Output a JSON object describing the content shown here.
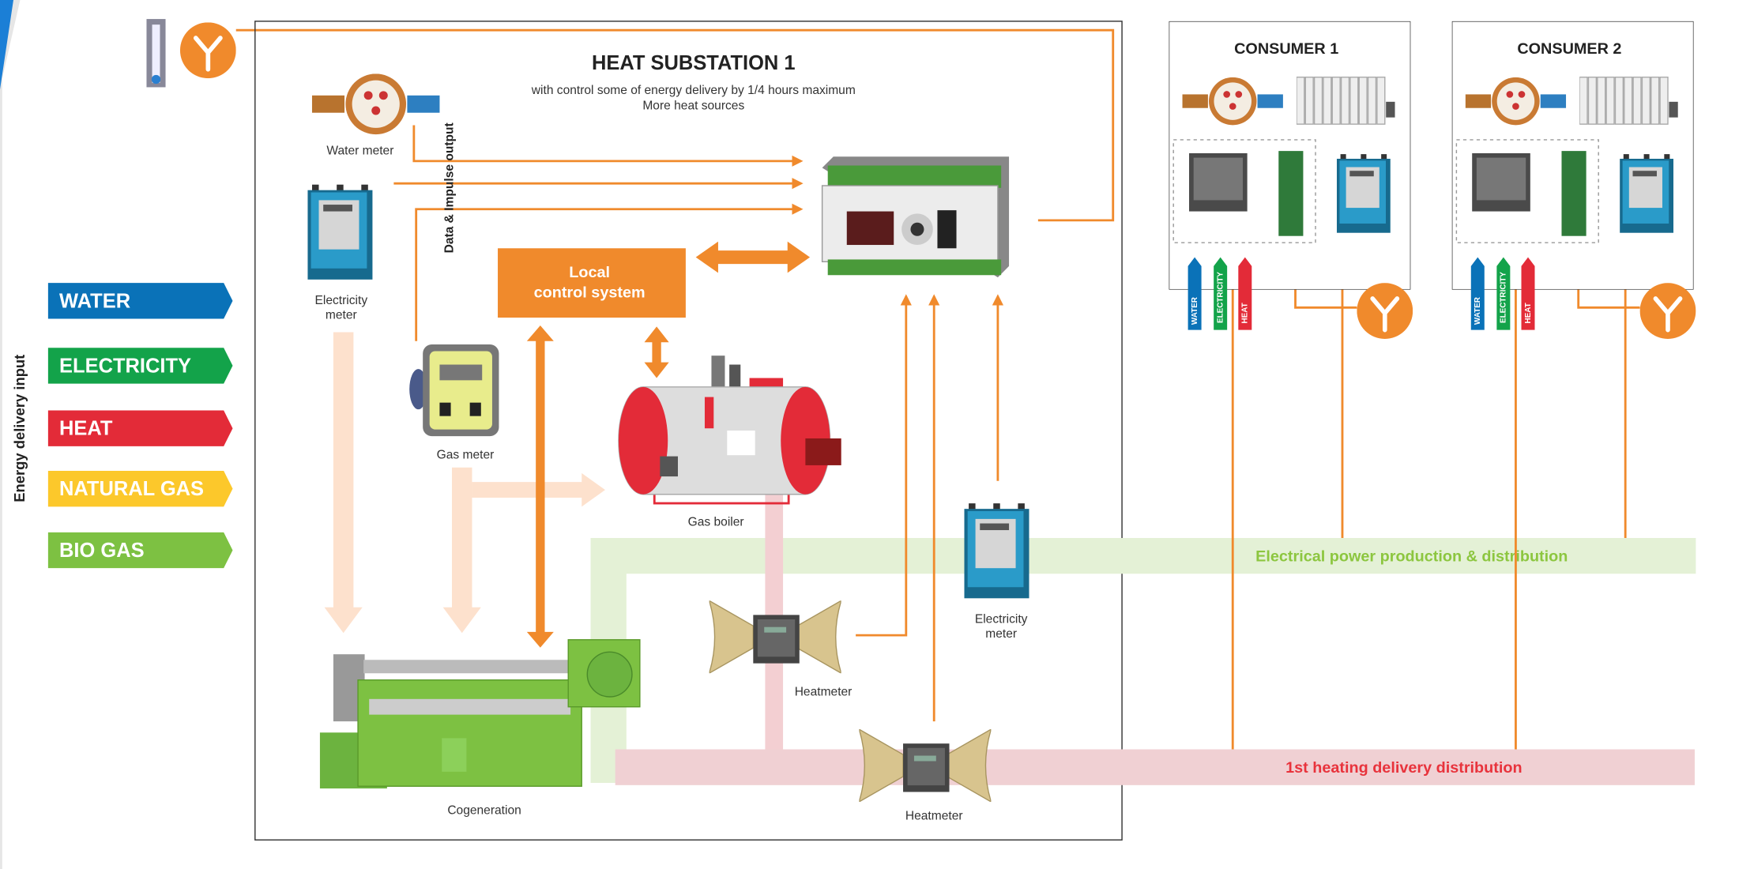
{
  "header": {
    "title": "HEAT SUBSTATION 1",
    "subtitle": [
      "with control some of energy delivery by 1/4 hours maximum",
      "More heat sources"
    ]
  },
  "legend": {
    "title": "Energy delivery input",
    "items": [
      "WATER",
      "ELECTRICITY",
      "HEAT",
      "NATURAL GAS",
      "BIO GAS"
    ]
  },
  "substation": {
    "water_meter": "Water meter",
    "electricity_meter": [
      "Electricity",
      "meter"
    ],
    "data_output": "Data & Impulse output",
    "local_control": [
      "Local",
      "control system"
    ],
    "gas_meter": "Gas meter",
    "gas_boiler": "Gas boiler",
    "cogeneration": "Cogeneration",
    "heatmeter_1": "Heatmeter",
    "heatmeter_2": "Heatmeter",
    "electricity_meter_2": [
      "Electricity",
      "meter"
    ]
  },
  "consumers": [
    {
      "title": "CONSUMER 1",
      "inputs": [
        "WATER",
        "ELECTRICITY",
        "HEAT"
      ]
    },
    {
      "title": "CONSUMER 2",
      "inputs": [
        "WATER",
        "ELECTRICITY",
        "HEAT"
      ]
    }
  ],
  "distribution": {
    "electrical": "Electrical power production & distribution",
    "heating": "1st heating delivery distribution"
  }
}
